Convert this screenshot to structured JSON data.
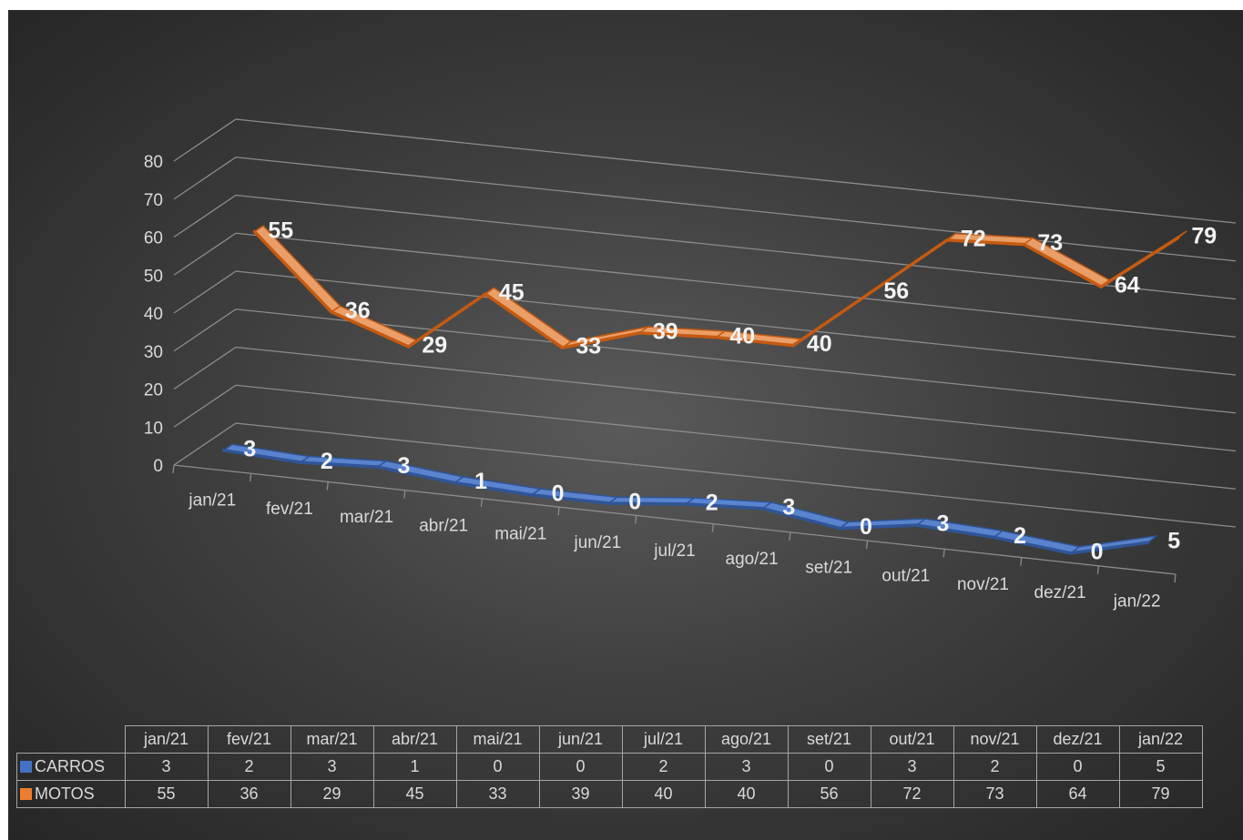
{
  "chart_data": {
    "type": "line",
    "title": "",
    "xlabel": "",
    "ylabel": "",
    "categories": [
      "jan/21",
      "fev/21",
      "mar/21",
      "abr/21",
      "mai/21",
      "jun/21",
      "jul/21",
      "ago/21",
      "set/21",
      "out/21",
      "nov/21",
      "dez/21",
      "jan/22"
    ],
    "series": [
      {
        "name": "CARROS",
        "color": "#4472c4",
        "values": [
          3,
          2,
          3,
          1,
          0,
          0,
          2,
          3,
          0,
          3,
          2,
          0,
          5
        ]
      },
      {
        "name": "MOTOS",
        "color": "#ed7d31",
        "values": [
          55,
          36,
          29,
          45,
          33,
          39,
          40,
          40,
          56,
          72,
          73,
          64,
          79
        ]
      }
    ],
    "ylim": [
      0,
      80
    ],
    "y_ticks": [
      "0",
      "10",
      "20",
      "30",
      "40",
      "50",
      "60",
      "70",
      "80"
    ],
    "grid": true,
    "legend": "data-table-below",
    "data_labels": true,
    "style": "3d-line"
  }
}
